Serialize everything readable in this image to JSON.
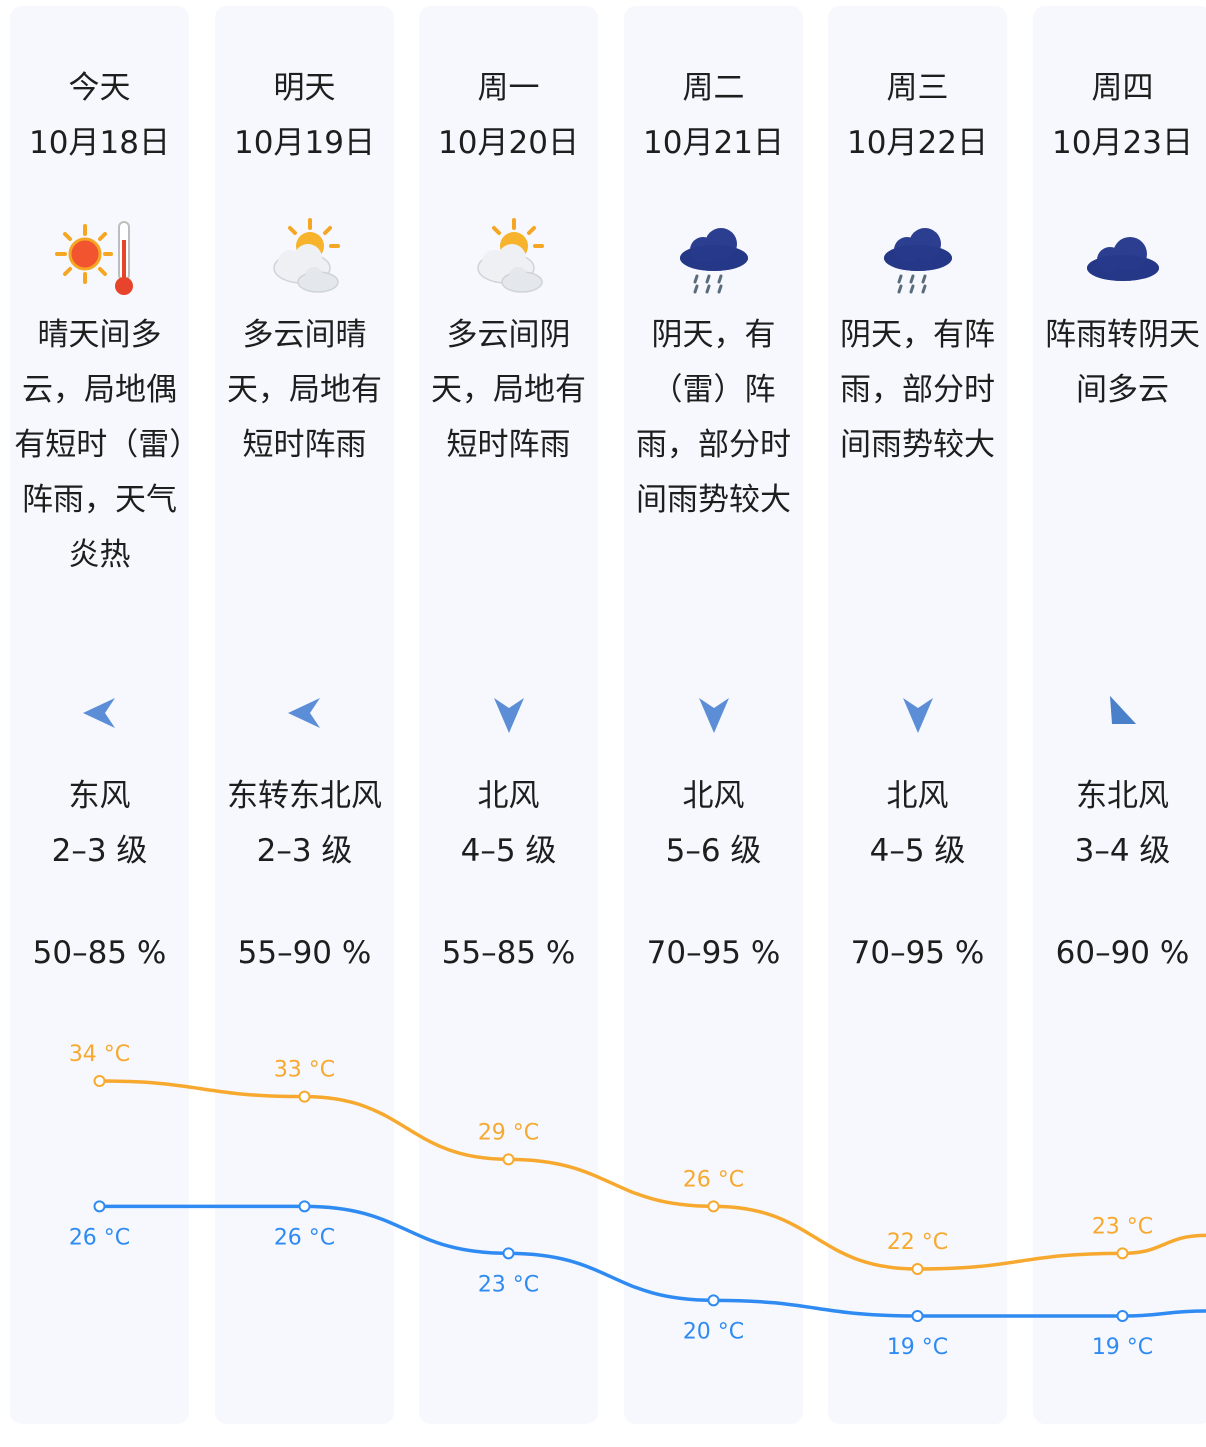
{
  "forecast": [
    {
      "day": "今天",
      "date": "10月18日",
      "weather": "sunny-hot",
      "desc": "晴天间多云，局地偶有短时（雷）阵雨，天气炎热",
      "wind_dir": "东风",
      "wind_arrow": "arrow-left",
      "wind_level": "2–3 级",
      "humidity": "50–85 %"
    },
    {
      "day": "明天",
      "date": "10月19日",
      "weather": "partly-cloudy",
      "desc": "多云间晴天，局地有短时阵雨",
      "wind_dir": "东转东北风",
      "wind_arrow": "arrow-left",
      "wind_level": "2–3 级",
      "humidity": "55–90 %"
    },
    {
      "day": "周一",
      "date": "10月20日",
      "weather": "partly-cloudy",
      "desc": "多云间阴天，局地有短时阵雨",
      "wind_dir": "北风",
      "wind_arrow": "arrow-down",
      "wind_level": "4–5 级",
      "humidity": "55–85 %"
    },
    {
      "day": "周二",
      "date": "10月21日",
      "weather": "rain",
      "desc": "阴天，有（雷）阵雨，部分时间雨势较大",
      "wind_dir": "北风",
      "wind_arrow": "arrow-down",
      "wind_level": "5–6 级",
      "humidity": "70–95 %"
    },
    {
      "day": "周三",
      "date": "10月22日",
      "weather": "rain",
      "desc": "阴天，有阵雨，部分时间雨势较大",
      "wind_dir": "北风",
      "wind_arrow": "arrow-down",
      "wind_level": "4–5 级",
      "humidity": "70–95 %"
    },
    {
      "day": "周四",
      "date": "10月23日",
      "weather": "overcast",
      "desc": "阵雨转阴天间多云",
      "wind_dir": "东北风",
      "wind_arrow": "arrow-up-right",
      "wind_level": "3–4 级",
      "humidity": "60–90 %"
    }
  ],
  "chart_data": {
    "type": "line",
    "categories": [
      "10月18日",
      "10月19日",
      "10月20日",
      "10月21日",
      "10月22日",
      "10月23日"
    ],
    "unit": "°C",
    "series": [
      {
        "values": [
          34,
          33,
          29,
          26,
          22,
          23
        ],
        "color": "#f7a92f",
        "label_position": "above"
      },
      {
        "values": [
          26,
          26,
          23,
          20,
          19,
          19
        ],
        "color": "#2f8bf2",
        "label_position": "below"
      }
    ]
  },
  "colors": {
    "card_bg": "#f6f8fd",
    "high_temp": "#f7a92f",
    "low_temp": "#2f8bf2",
    "wind_arrow": "#5b8ed6",
    "text": "#1e1e1e"
  }
}
